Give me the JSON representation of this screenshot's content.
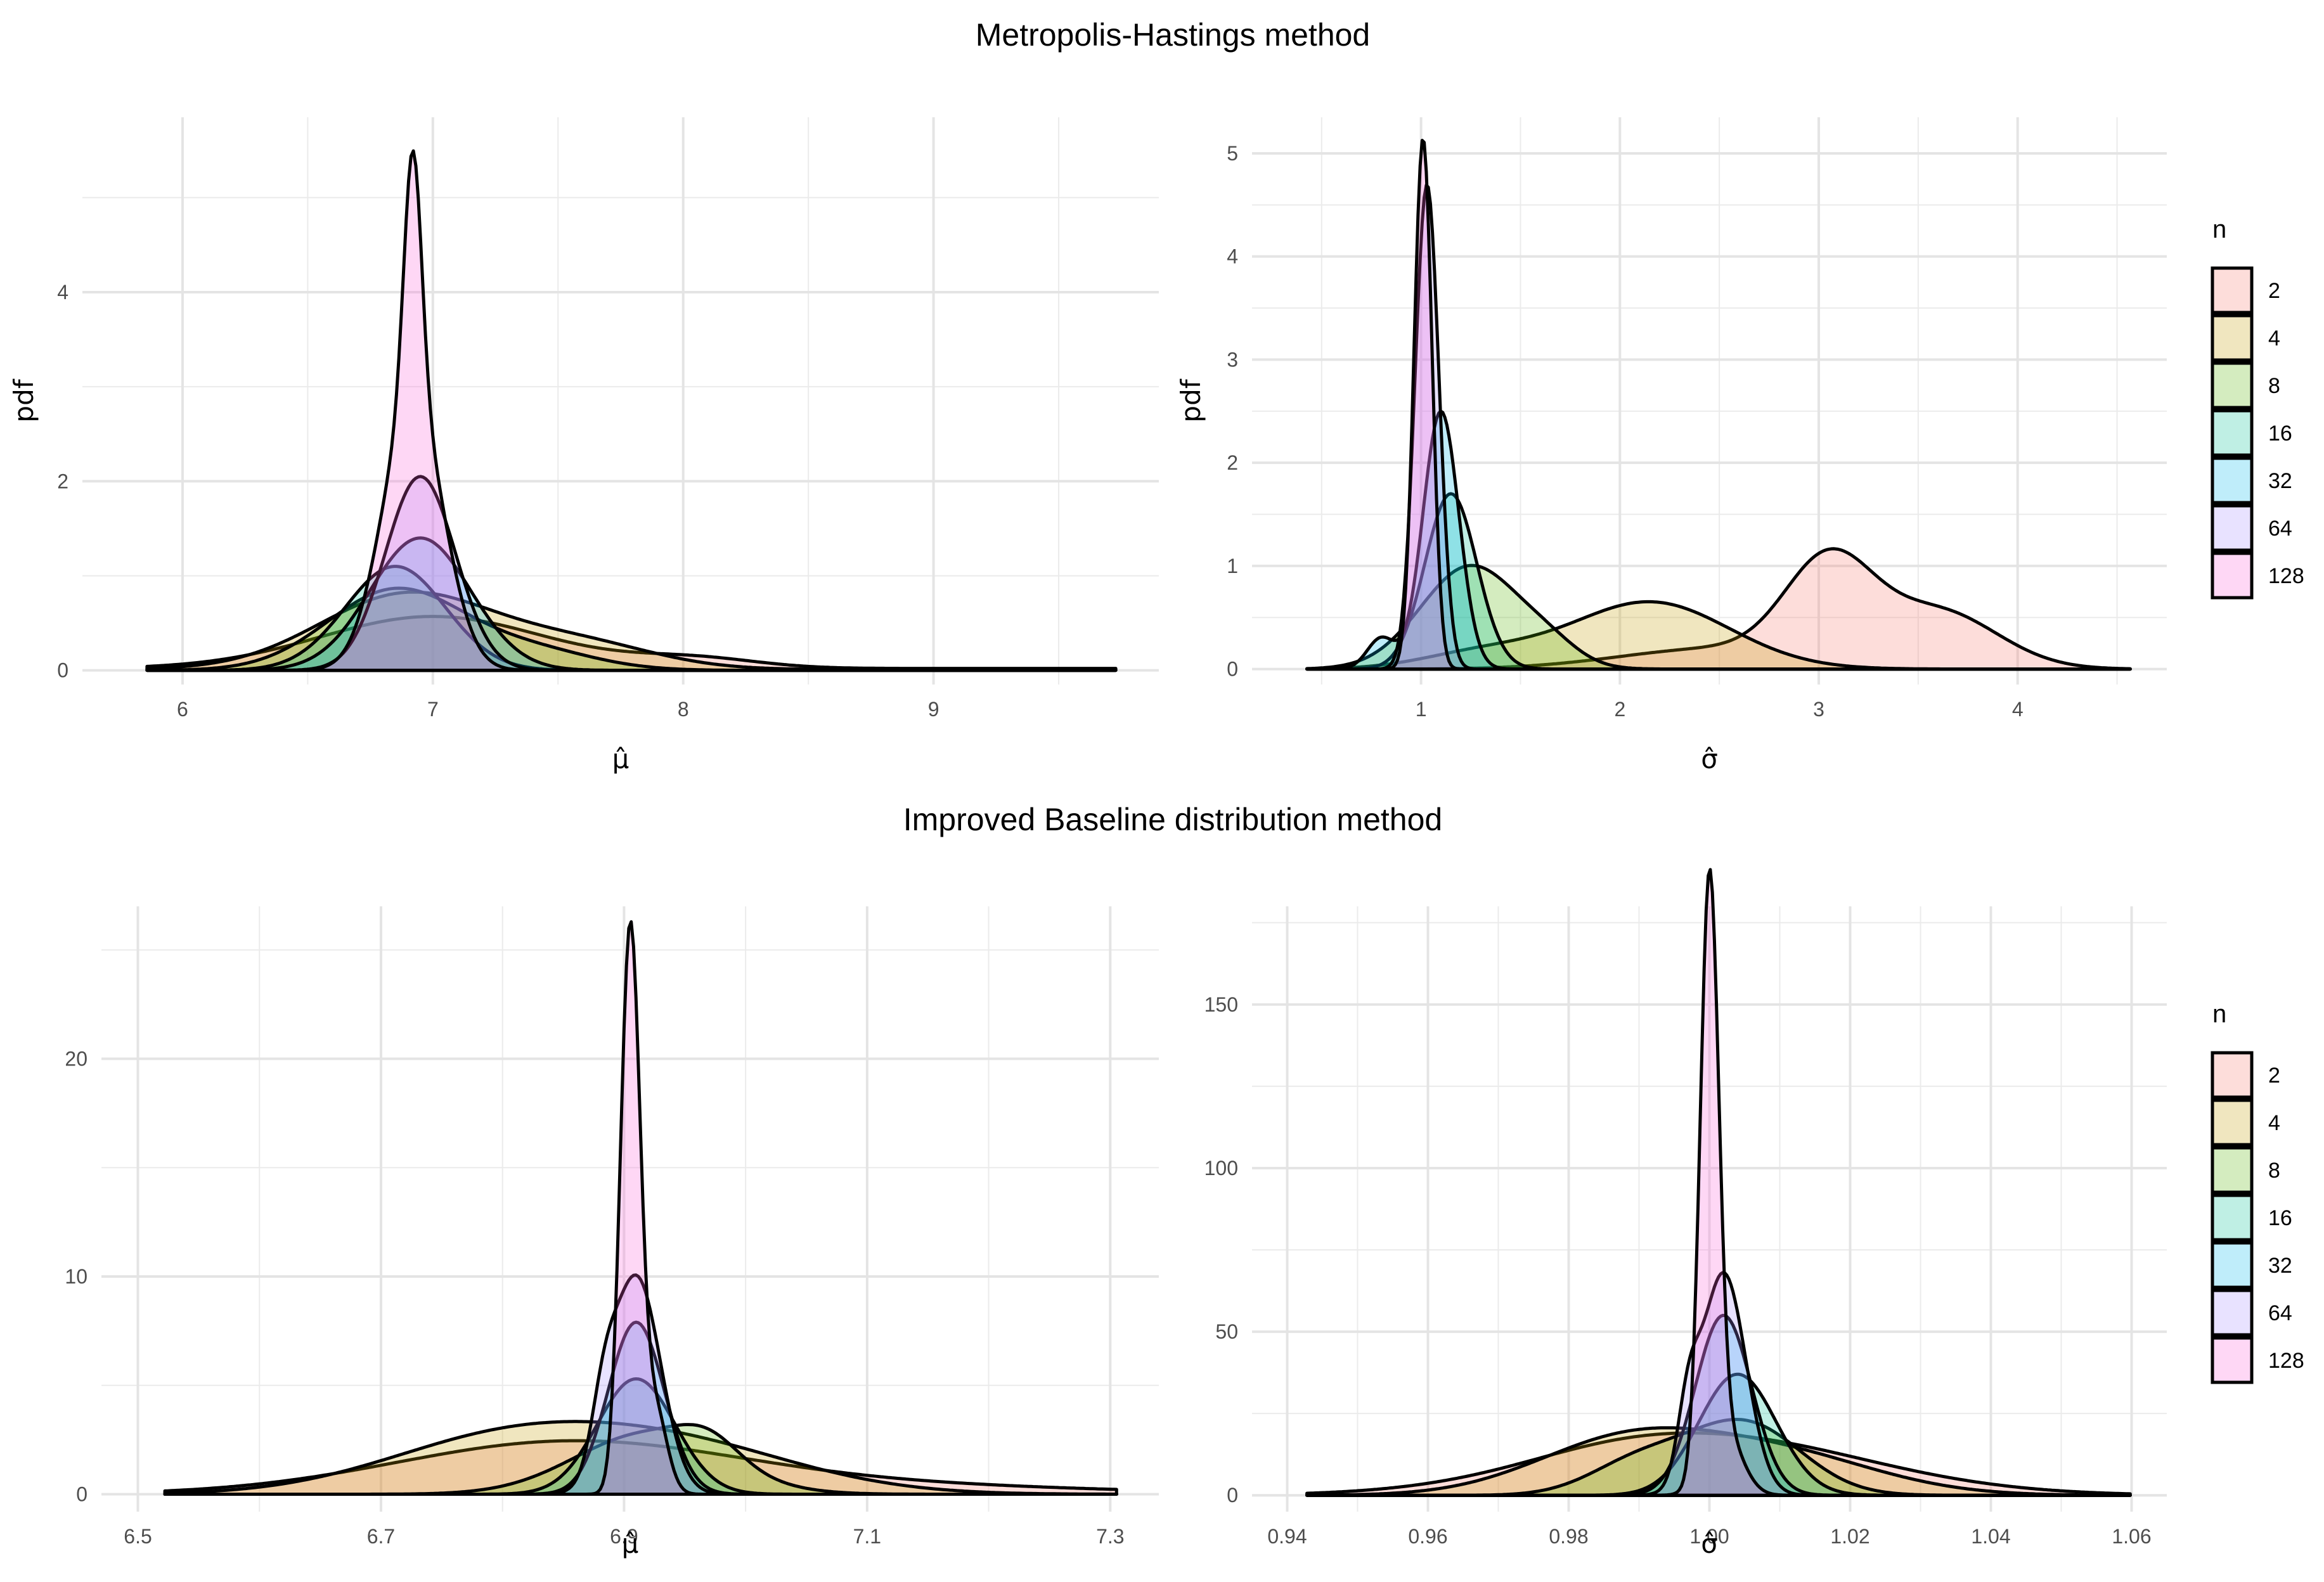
{
  "figure": {
    "top_title": "Metropolis-Hastings method",
    "bottom_title": "Improved Baseline distribution method"
  },
  "series_colors": {
    "2": "#F8766D",
    "4": "#C49A00",
    "8": "#53B400",
    "16": "#00C094",
    "32": "#00B6EB",
    "64": "#A58AFF",
    "128": "#FB61D7"
  },
  "chart_data": [
    {
      "type": "area",
      "panel": "mh-mu",
      "title": "Metropolis-Hastings method",
      "xlabel": "μ̂",
      "ylabel": "pdf",
      "xlim": [
        5.6,
        9.9
      ],
      "ylim": [
        -0.15,
        5.85
      ],
      "xticks": [
        6,
        7,
        8,
        9
      ],
      "yticks": [
        0,
        2,
        4
      ],
      "series": [
        {
          "name": "2",
          "peaks": [
            [
              7.0,
              0.55,
              0.45
            ],
            [
              8.05,
              0.1,
              0.25
            ]
          ],
          "tail": 0.02
        },
        {
          "name": "4",
          "peaks": [
            [
              6.9,
              0.8,
              0.35
            ],
            [
              7.6,
              0.25,
              0.3
            ]
          ],
          "tail": 0.01
        },
        {
          "name": "8",
          "peaks": [
            [
              6.85,
              0.85,
              0.27
            ],
            [
              7.4,
              0.2,
              0.25
            ]
          ]
        },
        {
          "name": "16",
          "peaks": [
            [
              6.85,
              1.1,
              0.2
            ]
          ]
        },
        {
          "name": "32",
          "peaks": [
            [
              6.95,
              1.4,
              0.2
            ]
          ]
        },
        {
          "name": "64",
          "peaks": [
            [
              6.95,
              2.05,
              0.14
            ]
          ]
        },
        {
          "name": "128",
          "peaks": [
            [
              6.92,
              2.85,
              0.12
            ],
            [
              6.92,
              2.65,
              0.035
            ]
          ]
        }
      ]
    },
    {
      "type": "area",
      "panel": "mh-sigma",
      "xlabel": "σ̂",
      "ylabel": "pdf",
      "xlim": [
        0.15,
        4.75
      ],
      "ylim": [
        -0.15,
        5.35
      ],
      "xticks": [
        1,
        2,
        3,
        4
      ],
      "yticks": [
        0,
        1,
        2,
        3,
        4,
        5
      ],
      "series": [
        {
          "name": "2",
          "peaks": [
            [
              3.05,
              0.95,
              0.22
            ],
            [
              3.6,
              0.55,
              0.3
            ],
            [
              2.5,
              0.2,
              0.5
            ]
          ]
        },
        {
          "name": "4",
          "peaks": [
            [
              2.15,
              0.65,
              0.4
            ],
            [
              1.3,
              0.15,
              0.3
            ]
          ]
        },
        {
          "name": "8",
          "peaks": [
            [
              1.25,
              1.0,
              0.25
            ],
            [
              1.65,
              0.15,
              0.15
            ]
          ]
        },
        {
          "name": "16",
          "peaks": [
            [
              1.15,
              1.7,
              0.13
            ]
          ]
        },
        {
          "name": "32",
          "peaks": [
            [
              1.1,
              2.5,
              0.09
            ],
            [
              0.8,
              0.3,
              0.07
            ]
          ]
        },
        {
          "name": "64",
          "peaks": [
            [
              1.03,
              4.7,
              0.06
            ]
          ]
        },
        {
          "name": "128",
          "peaks": [
            [
              1.01,
              5.15,
              0.045
            ]
          ]
        }
      ]
    },
    {
      "type": "area",
      "panel": "ib-mu",
      "title": "Improved Baseline distribution method",
      "xlabel": "μ̂",
      "ylabel": "",
      "xlim": [
        6.47,
        7.34
      ],
      "ylim": [
        -0.8,
        27.0
      ],
      "xticks": [
        6.5,
        6.7,
        6.9,
        7.1,
        7.3
      ],
      "yticks": [
        0,
        10,
        20
      ],
      "series": [
        {
          "name": "2",
          "peaks": [
            [
              6.85,
              2.3,
              0.14
            ],
            [
              7.1,
              0.4,
              0.18
            ]
          ]
        },
        {
          "name": "4",
          "peaks": [
            [
              6.8,
              2.4,
              0.1
            ],
            [
              6.95,
              2.0,
              0.1
            ]
          ]
        },
        {
          "name": "8",
          "peaks": [
            [
              6.92,
              2.8,
              0.06
            ],
            [
              6.97,
              1.0,
              0.025
            ]
          ]
        },
        {
          "name": "16",
          "peaks": [
            [
              6.91,
              5.3,
              0.032
            ]
          ]
        },
        {
          "name": "32",
          "peaks": [
            [
              6.91,
              7.9,
              0.023
            ]
          ]
        },
        {
          "name": "64",
          "peaks": [
            [
              6.91,
              10.0,
              0.02
            ],
            [
              6.883,
              2.5,
              0.01
            ]
          ]
        },
        {
          "name": "128",
          "peaks": [
            [
              6.905,
              25.8,
              0.008
            ],
            [
              6.925,
              4.0,
              0.01
            ]
          ]
        }
      ]
    },
    {
      "type": "area",
      "panel": "ib-sigma",
      "xlabel": "σ̂",
      "ylabel": "",
      "xlim": [
        0.935,
        1.065
      ],
      "ylim": [
        -5.0,
        180.0
      ],
      "xticks": [
        0.94,
        0.96,
        0.98,
        1.0,
        1.02,
        1.04,
        1.06
      ],
      "xticklabels": [
        "0.94",
        "0.96",
        "0.98",
        "1.00",
        "1.02",
        "1.04",
        "1.06"
      ],
      "yticks": [
        0,
        50,
        100,
        150
      ],
      "series": [
        {
          "name": "2",
          "peaks": [
            [
              1.0,
              18.0,
              0.022
            ],
            [
              0.985,
              2.0,
              0.012
            ]
          ]
        },
        {
          "name": "4",
          "peaks": [
            [
              0.988,
              16.0,
              0.013
            ],
            [
              1.01,
              12.0,
              0.014
            ]
          ]
        },
        {
          "name": "8",
          "peaks": [
            [
              1.005,
              22.0,
              0.008
            ],
            [
              0.99,
              10.0,
              0.007
            ]
          ]
        },
        {
          "name": "16",
          "peaks": [
            [
              1.004,
              37.0,
              0.0055
            ]
          ]
        },
        {
          "name": "32",
          "peaks": [
            [
              1.002,
              55.0,
              0.004
            ]
          ]
        },
        {
          "name": "64",
          "peaks": [
            [
              1.002,
              68.0,
              0.0032
            ],
            [
              0.997,
              20.0,
              0.0015
            ]
          ]
        },
        {
          "name": "128",
          "peaks": [
            [
              1.0,
              177.0,
              0.0013
            ],
            [
              1.002,
              20.0,
              0.0025
            ]
          ]
        }
      ]
    }
  ],
  "legends": [
    {
      "title": "n",
      "items": [
        "2",
        "4",
        "8",
        "16",
        "32",
        "64",
        "128"
      ]
    },
    {
      "title": "n",
      "items": [
        "2",
        "4",
        "8",
        "16",
        "32",
        "64",
        "128"
      ]
    }
  ]
}
